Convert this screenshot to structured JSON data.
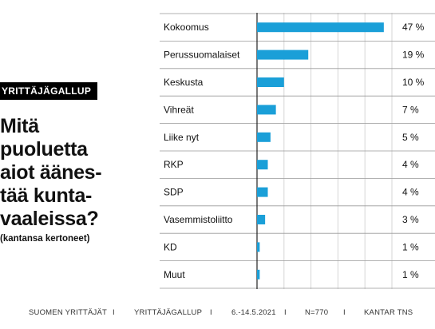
{
  "survey": {
    "tag": "YRITTÄJÄGALLUP",
    "question_lines": [
      "Mitä",
      "puoluetta",
      "aiot äänes-",
      "tää kunta-",
      "vaaleissa?"
    ],
    "subtext": "(kantansa kertoneet)"
  },
  "footer": {
    "items": [
      "SUOMEN YRITTÄJÄT",
      "I",
      "YRITTÄJÄGALLUP",
      "I",
      "6.-14.5.2021",
      "I",
      "N=770",
      "I",
      "KANTAR TNS"
    ]
  },
  "colors": {
    "bar": "#1a9fd8",
    "grid": "#d6d6d6",
    "axis": "#222222",
    "rule": "#999999"
  },
  "chart_data": {
    "type": "bar",
    "orientation": "horizontal",
    "categories": [
      "Kokoomus",
      "Perussuomalaiset",
      "Keskusta",
      "Vihreät",
      "Liike nyt",
      "RKP",
      "SDP",
      "Vasemmistoliitto",
      "KD",
      "Muut"
    ],
    "values": [
      47,
      19,
      10,
      7,
      5,
      4,
      4,
      3,
      1,
      1
    ],
    "value_labels": [
      "47 %",
      "19 %",
      "10 %",
      "7 %",
      "5 %",
      "4 %",
      "4 %",
      "3 %",
      "1 %",
      "1 %"
    ],
    "xlim": [
      0,
      50
    ],
    "grid": true
  }
}
